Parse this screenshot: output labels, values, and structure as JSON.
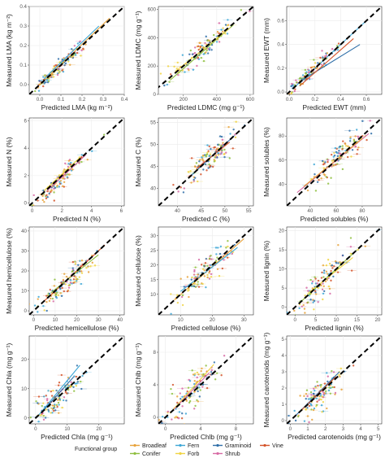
{
  "figure": {
    "legend": {
      "title": "Functional group",
      "groups": [
        {
          "name": "Broadleaf",
          "color": "#e8a33c"
        },
        {
          "name": "Conifer",
          "color": "#8fbf3f"
        },
        {
          "name": "Fern",
          "color": "#3fa7d6"
        },
        {
          "name": "Forb",
          "color": "#f0d443"
        },
        {
          "name": "Graminoid",
          "color": "#2f6fa8"
        },
        {
          "name": "Shrub",
          "color": "#d76aa4"
        },
        {
          "name": "Vine",
          "color": "#d4542a"
        }
      ]
    }
  },
  "chart_data": [
    {
      "type": "scatter",
      "xlabel": "Predicted LMA (kg m⁻²)",
      "ylabel": "Measured LMA (kg m⁻²)",
      "xlim": [
        -0.05,
        0.4
      ],
      "ylim": [
        -0.05,
        0.4
      ],
      "xticks": [
        "0.0",
        "0.1",
        "0.2",
        "0.3",
        "0.4"
      ],
      "xtick_values": [
        0,
        0.1,
        0.2,
        0.3,
        0.4
      ],
      "yticks": [
        "0.0",
        "0.1",
        "0.2",
        "0.3",
        "0.4"
      ],
      "ytick_values": [
        0,
        0.1,
        0.2,
        0.3,
        0.4
      ],
      "center": [
        0.09,
        0.09
      ],
      "spread": 0.06,
      "noise": 0.02,
      "fits": [
        [
          0.0,
          0.33,
          0.0,
          0.34
        ],
        [
          0.02,
          0.28,
          0.03,
          0.3
        ]
      ]
    },
    {
      "type": "scatter",
      "xlabel": "Predicted LDMC (mg g⁻¹)",
      "ylabel": "Measured LDMC (mg g⁻¹)",
      "xlim": [
        50,
        620
      ],
      "ylim": [
        0,
        620
      ],
      "xticks": [
        "200",
        "400",
        "600"
      ],
      "xtick_values": [
        200,
        400,
        600
      ],
      "yticks": [
        "0",
        "200",
        "400",
        "600"
      ],
      "ytick_values": [
        0,
        200,
        400,
        600
      ],
      "center": [
        320,
        320
      ],
      "spread": 100,
      "noise": 40,
      "fits": [
        [
          120,
          500,
          100,
          490
        ],
        [
          150,
          480,
          160,
          470
        ]
      ]
    },
    {
      "type": "scatter",
      "xlabel": "Predicted EWT (mm)",
      "ylabel": "Measured EWT (mm)",
      "xlim": [
        -0.02,
        0.72
      ],
      "ylim": [
        -0.02,
        0.72
      ],
      "xticks": [
        "0.0",
        "0.2",
        "0.4",
        "0.6"
      ],
      "xtick_values": [
        0,
        0.2,
        0.4,
        0.6
      ],
      "yticks": [
        "0.0",
        "0.2",
        "0.4",
        "0.6"
      ],
      "ytick_values": [
        0,
        0.2,
        0.4,
        0.6
      ],
      "center": [
        0.14,
        0.14
      ],
      "spread": 0.1,
      "noise": 0.03,
      "fits": [
        [
          0.05,
          0.6,
          0.05,
          0.6
        ],
        [
          0.1,
          0.55,
          0.1,
          0.4
        ],
        [
          0.08,
          0.5,
          0.05,
          0.45
        ]
      ]
    },
    {
      "type": "scatter",
      "xlabel": "Predicted N (%)",
      "ylabel": "Measured N (%)",
      "xlim": [
        -0.2,
        6.2
      ],
      "ylim": [
        -0.2,
        6.2
      ],
      "xticks": [
        "0",
        "2",
        "4",
        "6"
      ],
      "xtick_values": [
        0,
        2,
        4,
        6
      ],
      "yticks": [
        "0",
        "2",
        "4",
        "6"
      ],
      "ytick_values": [
        0,
        2,
        4,
        6
      ],
      "center": [
        2.0,
        1.9
      ],
      "spread": 0.9,
      "noise": 0.3,
      "fits": [
        [
          0.8,
          3.2,
          0.9,
          3.3
        ],
        [
          1.0,
          3.6,
          0.9,
          3.5
        ]
      ]
    },
    {
      "type": "scatter",
      "xlabel": "Predicted C (%)",
      "ylabel": "Measured C (%)",
      "xlim": [
        36,
        56
      ],
      "ylim": [
        36,
        56
      ],
      "xticks": [
        "40",
        "45",
        "50",
        "55"
      ],
      "xtick_values": [
        40,
        45,
        50,
        55
      ],
      "yticks": [
        "40",
        "45",
        "50",
        "55"
      ],
      "ytick_values": [
        40,
        45,
        50,
        55
      ],
      "center": [
        47,
        47
      ],
      "spread": 3,
      "noise": 1.5,
      "fits": [
        [
          43,
          52,
          43,
          52
        ],
        [
          44,
          51,
          44.5,
          50.5
        ]
      ]
    },
    {
      "type": "scatter",
      "xlabel": "Predicted solubles (%)",
      "ylabel": "Measured solubles (%)",
      "xlim": [
        22,
        95
      ],
      "ylim": [
        22,
        95
      ],
      "xticks": [
        "40",
        "60",
        "80"
      ],
      "xtick_values": [
        40,
        60,
        80
      ],
      "yticks": [
        "40",
        "60",
        "80"
      ],
      "ytick_values": [
        40,
        60,
        80
      ],
      "center": [
        62,
        62
      ],
      "spread": 13,
      "noise": 6,
      "fits": [
        [
          30,
          85,
          33,
          82
        ],
        [
          35,
          80,
          38,
          78
        ]
      ]
    },
    {
      "type": "scatter",
      "xlabel": "Predicted hemicellulose (%)",
      "ylabel": "Measured hemicellulose (%)",
      "xlim": [
        -2,
        42
      ],
      "ylim": [
        -2,
        42
      ],
      "xticks": [
        "0",
        "10",
        "20",
        "30",
        "40"
      ],
      "xtick_values": [
        0,
        10,
        20,
        30,
        40
      ],
      "yticks": [
        "0",
        "10",
        "20",
        "30",
        "40"
      ],
      "ytick_values": [
        0,
        10,
        20,
        30,
        40
      ],
      "center": [
        14,
        13
      ],
      "spread": 7,
      "noise": 3,
      "fits": [
        [
          5,
          33,
          5,
          33
        ],
        [
          8,
          30,
          9,
          28
        ]
      ]
    },
    {
      "type": "scatter",
      "xlabel": "Predicted cellulose (%)",
      "ylabel": "Measured cellulose (%)",
      "xlim": [
        3,
        33
      ],
      "ylim": [
        3,
        33
      ],
      "xticks": [
        "10",
        "20",
        "30"
      ],
      "xtick_values": [
        10,
        20,
        30
      ],
      "yticks": [
        "10",
        "15",
        "20",
        "25",
        "30"
      ],
      "ytick_values": [
        10,
        15,
        20,
        25,
        30
      ],
      "center": [
        17,
        17
      ],
      "spread": 5,
      "noise": 2.5,
      "fits": [
        [
          8,
          30,
          8,
          29
        ],
        [
          10,
          28,
          11,
          26
        ]
      ]
    },
    {
      "type": "scatter",
      "xlabel": "Predicted lignin (%)",
      "ylabel": "Measured lignin (%)",
      "xlim": [
        -2,
        21
      ],
      "ylim": [
        -2,
        21
      ],
      "xticks": [
        "0",
        "5",
        "10",
        "15",
        "20"
      ],
      "xtick_values": [
        0,
        5,
        10,
        15,
        20
      ],
      "yticks": [
        "0",
        "5",
        "10",
        "15",
        "20"
      ],
      "ytick_values": [
        0,
        5,
        10,
        15,
        20
      ],
      "center": [
        7,
        7
      ],
      "spread": 4,
      "noise": 2,
      "fits": [
        [
          1,
          15,
          1,
          15
        ],
        [
          3,
          14,
          3.5,
          13
        ]
      ]
    },
    {
      "type": "scatter",
      "xlabel": "Predicted Chla (mg g⁻¹)",
      "ylabel": "Measured Chla (mg g⁻¹)",
      "xlim": [
        -2,
        28
      ],
      "ylim": [
        -2,
        28
      ],
      "xticks": [
        "0",
        "10",
        "20"
      ],
      "xtick_values": [
        0,
        10,
        20
      ],
      "yticks": [
        "0",
        "10",
        "20"
      ],
      "ytick_values": [
        0,
        10,
        20
      ],
      "center": [
        7,
        7
      ],
      "spread": 4,
      "noise": 2.5,
      "fits": [
        [
          1,
          14,
          1,
          18
        ],
        [
          2,
          12,
          2,
          14
        ]
      ]
    },
    {
      "type": "scatter",
      "xlabel": "Predicted Chlb (mg g⁻¹)",
      "ylabel": "Measured Chlb (mg g⁻¹)",
      "xlim": [
        -0.8,
        10
      ],
      "ylim": [
        -0.8,
        10
      ],
      "xticks": [
        "0",
        "4",
        "8"
      ],
      "xtick_values": [
        0,
        4,
        8
      ],
      "yticks": [
        "0",
        "4",
        "8"
      ],
      "ytick_values": [
        0,
        4,
        8
      ],
      "center": [
        3,
        3
      ],
      "spread": 1.6,
      "noise": 1,
      "fits": [
        [
          0.5,
          5.5,
          0.5,
          6.5
        ],
        [
          1,
          5,
          1,
          5.5
        ]
      ]
    },
    {
      "type": "scatter",
      "xlabel": "Predicted carotenoids (mg g⁻¹)",
      "ylabel": "Measured carotenoids (mg g⁻¹)",
      "xlim": [
        -0.2,
        5.2
      ],
      "ylim": [
        -0.2,
        5.2
      ],
      "xticks": [
        "0",
        "1",
        "2",
        "3",
        "4",
        "5"
      ],
      "xtick_values": [
        0,
        1,
        2,
        3,
        4,
        5
      ],
      "yticks": [
        "0",
        "1",
        "2",
        "3",
        "4",
        "5"
      ],
      "ytick_values": [
        0,
        1,
        2,
        3,
        4,
        5
      ],
      "center": [
        1.6,
        1.6
      ],
      "spread": 0.7,
      "noise": 0.5,
      "fits": [
        [
          0.3,
          2.8,
          0.3,
          3.0
        ],
        [
          0.5,
          2.6,
          0.5,
          2.7
        ]
      ]
    }
  ]
}
